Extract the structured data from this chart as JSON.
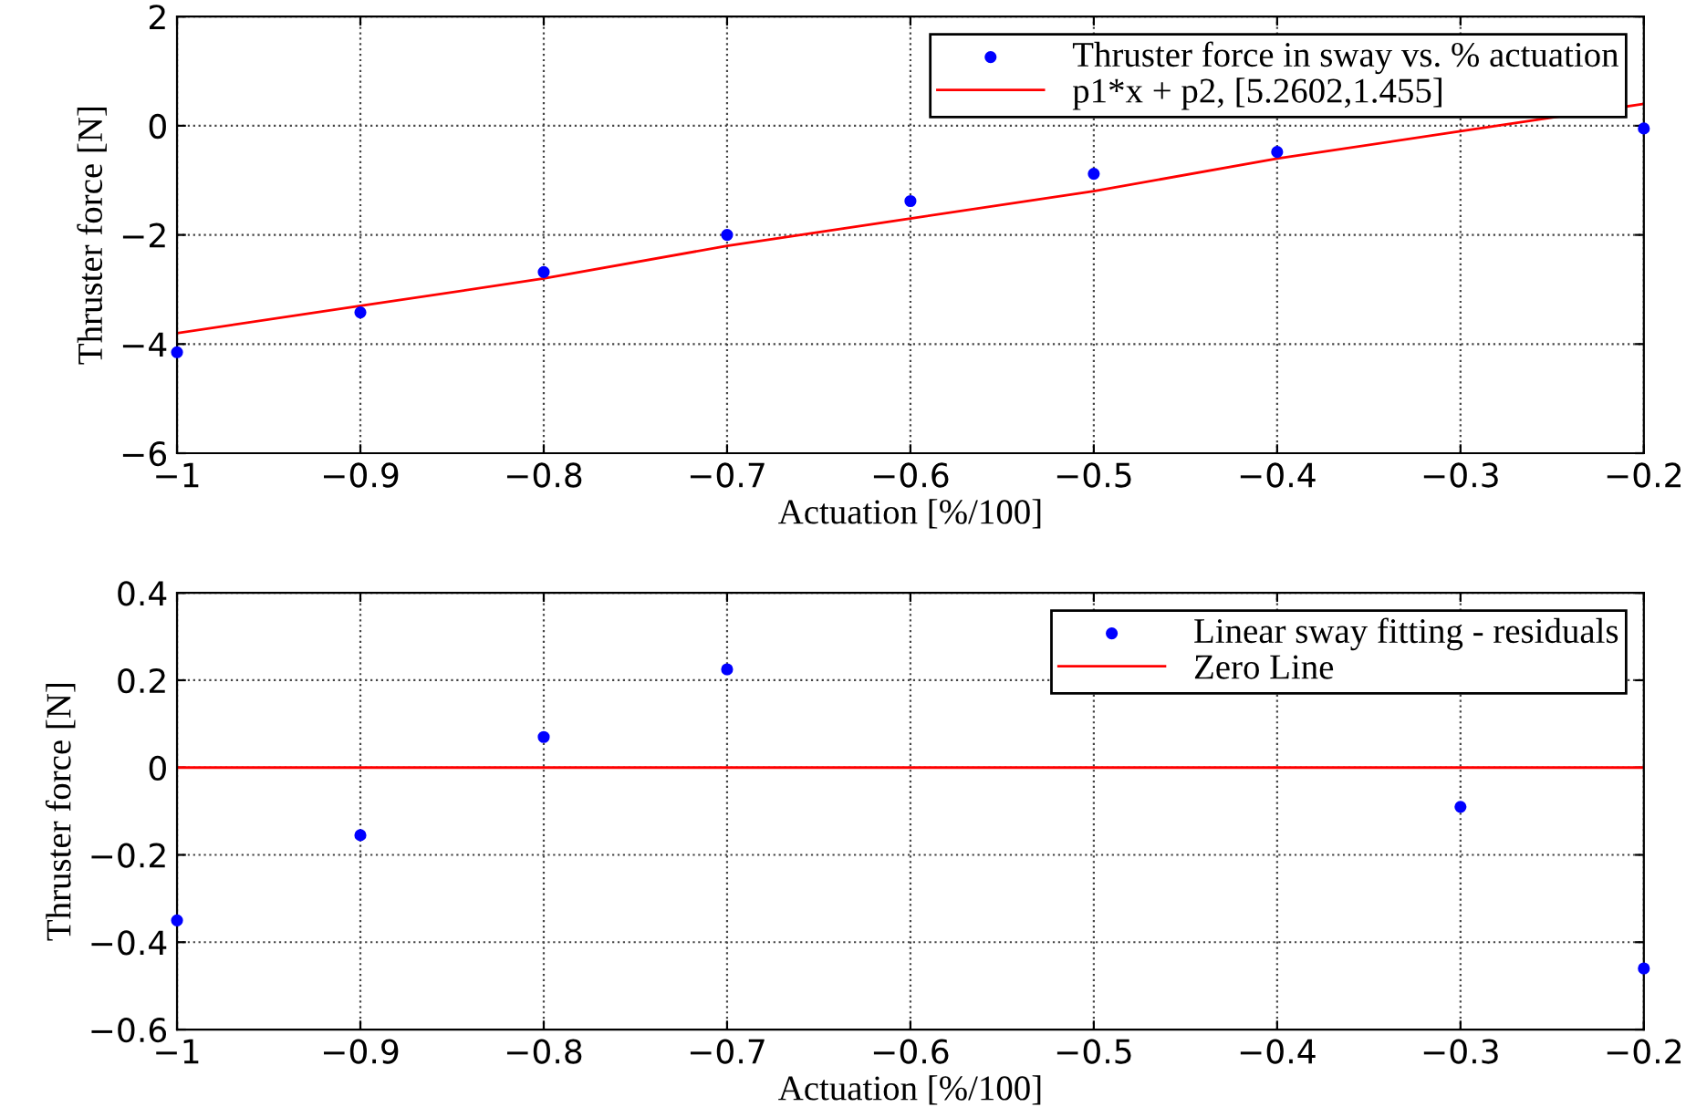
{
  "chart_data": [
    {
      "type": "scatter",
      "xlabel": "Actuation [%/100]",
      "ylabel": "Thruster force [N]",
      "x": [
        -1,
        -0.9,
        -0.8,
        -0.7,
        -0.6,
        -0.5,
        -0.4,
        -0.3,
        -0.2
      ],
      "series": [
        {
          "name": "Thruster force in sway vs. % actuation",
          "color": "#0000ff",
          "values": [
            -4.15,
            -3.42,
            -2.68,
            -2.0,
            -1.38,
            -0.88,
            -0.48,
            null,
            -0.05
          ],
          "marker": "circle"
        },
        {
          "type": "line",
          "name": "p1*x + p2, [5.2602,1.455]",
          "color": "#ff0000",
          "values": [
            -3.8,
            -3.3,
            -2.8,
            -2.2,
            -1.7,
            -1.2,
            -0.6,
            -0.1,
            0.4
          ],
          "marker": "none",
          "line_style": "solid"
        }
      ],
      "xlim": [
        -1,
        -0.2
      ],
      "ylim": [
        -6,
        2
      ],
      "xticks": [
        {
          "value": -1,
          "label": "−1"
        },
        {
          "value": -0.9,
          "label": "−0.9"
        },
        {
          "value": -0.8,
          "label": "−0.8"
        },
        {
          "value": -0.7,
          "label": "−0.7"
        },
        {
          "value": -0.6,
          "label": "−0.6"
        },
        {
          "value": -0.5,
          "label": "−0.5"
        },
        {
          "value": -0.4,
          "label": "−0.4"
        },
        {
          "value": -0.3,
          "label": "−0.3"
        },
        {
          "value": -0.2,
          "label": "−0.2"
        }
      ],
      "yticks": [
        {
          "value": -6,
          "label": "−6"
        },
        {
          "value": -4,
          "label": "−4"
        },
        {
          "value": -2,
          "label": "−2"
        },
        0,
        2
      ],
      "grid": true,
      "legend": "top right"
    },
    {
      "type": "scatter",
      "xlabel": "Actuation [%/100]",
      "ylabel": "Thruster force [N]",
      "x": [
        -1,
        -0.9,
        -0.8,
        -0.7,
        -0.6,
        -0.5,
        -0.4,
        -0.3,
        -0.2
      ],
      "series": [
        {
          "name": "Linear sway fitting - residuals",
          "color": "#0000ff",
          "values": [
            -0.35,
            -0.155,
            0.07,
            0.225,
            null,
            null,
            null,
            -0.09,
            -0.46
          ],
          "marker": "circle"
        },
        {
          "type": "line",
          "name": "Zero Line",
          "color": "#ff0000",
          "values": [
            0,
            0,
            0,
            0,
            0,
            0,
            0,
            0,
            0
          ],
          "marker": "none",
          "line_style": "solid"
        }
      ],
      "xlim": [
        -1,
        -0.2
      ],
      "ylim": [
        -0.6,
        0.4
      ],
      "xticks": [
        {
          "value": -1,
          "label": "−1"
        },
        {
          "value": -0.9,
          "label": "−0.9"
        },
        {
          "value": -0.8,
          "label": "−0.8"
        },
        {
          "value": -0.7,
          "label": "−0.7"
        },
        {
          "value": -0.6,
          "label": "−0.6"
        },
        {
          "value": -0.5,
          "label": "−0.5"
        },
        {
          "value": -0.4,
          "label": "−0.4"
        },
        {
          "value": -0.3,
          "label": "−0.3"
        },
        {
          "value": -0.2,
          "label": "−0.2"
        }
      ],
      "yticks": [
        {
          "value": -0.6,
          "label": "−0.6"
        },
        {
          "value": -0.4,
          "label": "−0.4"
        },
        {
          "value": -0.2,
          "label": "−0.2"
        },
        0,
        0.2,
        0.4
      ],
      "grid": true,
      "legend": "top right"
    }
  ]
}
